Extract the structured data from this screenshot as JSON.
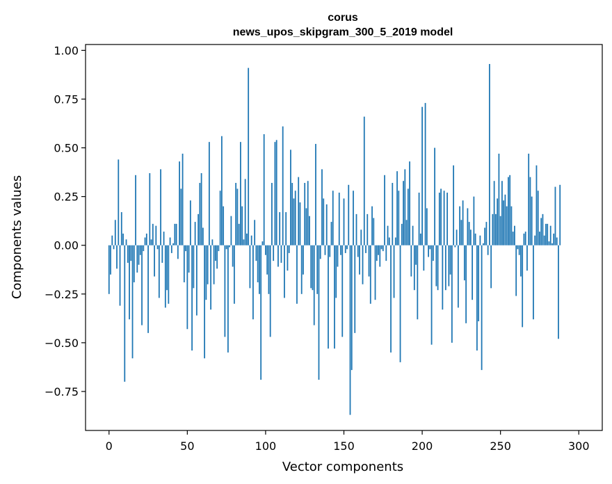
{
  "chart_data": {
    "type": "bar",
    "title_lines": [
      "corus",
      "news_upos_skipgram_300_5_2019 model"
    ],
    "xlabel": "Vector components",
    "ylabel": "Components values",
    "xlim": [
      -15,
      315
    ],
    "ylim": [
      -0.95,
      1.03
    ],
    "x_ticks": [
      0,
      50,
      100,
      150,
      200,
      250,
      300
    ],
    "y_ticks": [
      -0.75,
      -0.5,
      -0.25,
      0.0,
      0.25,
      0.5,
      0.75,
      1.0
    ],
    "x_tick_labels": [
      "0",
      "50",
      "100",
      "150",
      "200",
      "250",
      "300"
    ],
    "y_tick_labels": [
      "−0.75",
      "−0.50",
      "−0.25",
      "0.00",
      "0.25",
      "0.50",
      "0.75",
      "1.00"
    ],
    "grid": false,
    "bar_color": "#1f77b4",
    "values": [
      -0.25,
      -0.15,
      0.05,
      -0.02,
      0.13,
      -0.12,
      0.44,
      -0.31,
      0.17,
      0.06,
      -0.7,
      0.03,
      -0.09,
      -0.38,
      -0.08,
      -0.58,
      -0.19,
      0.36,
      -0.14,
      -0.1,
      -0.05,
      -0.41,
      -0.03,
      0.04,
      0.06,
      -0.45,
      0.37,
      0.03,
      0.11,
      -0.16,
      0.1,
      -0.02,
      -0.27,
      0.39,
      -0.09,
      0.07,
      -0.32,
      -0.23,
      -0.3,
      0.04,
      -0.04,
      0.01,
      0.11,
      0.11,
      -0.07,
      0.43,
      0.29,
      0.47,
      -0.19,
      -0.03,
      -0.43,
      -0.14,
      0.23,
      -0.54,
      -0.22,
      0.12,
      -0.36,
      0.16,
      0.32,
      0.37,
      0.09,
      -0.58,
      -0.28,
      -0.2,
      0.53,
      -0.33,
      0.03,
      -0.2,
      -0.08,
      -0.12,
      -0.03,
      0.28,
      0.56,
      0.2,
      -0.47,
      -0.02,
      -0.55,
      -0.01,
      0.15,
      -0.11,
      -0.3,
      0.32,
      0.29,
      0.11,
      0.53,
      0.2,
      0.03,
      0.34,
      0.06,
      0.91,
      -0.22,
      0.05,
      -0.38,
      0.13,
      -0.08,
      -0.19,
      -0.25,
      -0.69,
      0.02,
      0.57,
      -0.05,
      -0.15,
      -0.25,
      -0.47,
      0.32,
      -0.08,
      0.53,
      0.54,
      -0.11,
      0.17,
      -0.09,
      0.61,
      -0.27,
      0.17,
      -0.13,
      -0.04,
      0.49,
      0.32,
      0.24,
      0.28,
      -0.3,
      0.35,
      0.22,
      -0.25,
      -0.15,
      0.32,
      0.19,
      0.33,
      0.15,
      -0.22,
      -0.23,
      -0.41,
      0.52,
      -0.25,
      -0.69,
      -0.07,
      0.39,
      0.24,
      -0.05,
      0.21,
      -0.53,
      -0.06,
      0.12,
      0.28,
      -0.53,
      -0.27,
      -0.11,
      0.27,
      -0.05,
      -0.47,
      0.24,
      -0.04,
      -0.02,
      0.31,
      -0.87,
      -0.64,
      0.28,
      -0.45,
      0.16,
      -0.06,
      -0.15,
      0.08,
      -0.2,
      0.66,
      -0.04,
      0.16,
      -0.16,
      -0.3,
      0.2,
      0.14,
      -0.28,
      -0.08,
      -0.05,
      -0.11,
      -0.02,
      -0.03,
      0.36,
      -0.08,
      0.1,
      0.04,
      -0.55,
      0.32,
      -0.27,
      0.04,
      0.38,
      0.28,
      -0.6,
      0.11,
      0.33,
      0.39,
      0.13,
      0.29,
      0.43,
      -0.16,
      0.1,
      -0.23,
      -0.1,
      -0.38,
      0.27,
      0.06,
      0.71,
      -0.13,
      0.73,
      0.19,
      -0.06,
      -0.02,
      -0.51,
      -0.08,
      0.5,
      -0.21,
      -0.23,
      0.27,
      0.29,
      -0.33,
      0.28,
      -0.23,
      0.27,
      -0.21,
      -0.15,
      -0.5,
      0.41,
      -0.01,
      0.08,
      -0.32,
      0.2,
      0.13,
      0.23,
      -0.18,
      -0.4,
      0.19,
      0.12,
      0.08,
      -0.28,
      0.25,
      0.06,
      -0.54,
      -0.39,
      0.05,
      -0.64,
      0.01,
      0.09,
      0.12,
      -0.05,
      0.93,
      -0.22,
      0.16,
      0.33,
      0.16,
      0.24,
      0.47,
      0.15,
      0.33,
      0.23,
      0.26,
      0.2,
      0.35,
      0.36,
      0.2,
      0.07,
      0.1,
      -0.26,
      -0.02,
      -0.05,
      -0.16,
      -0.42,
      0.06,
      0.07,
      -0.13,
      0.47,
      0.35,
      0.25,
      -0.38,
      0.05,
      0.41,
      0.28,
      0.07,
      0.14,
      0.16,
      0.05,
      0.11,
      0.11,
      0.02,
      0.1,
      0.01,
      0.06,
      0.3,
      0.04,
      -0.48,
      0.31
    ]
  }
}
